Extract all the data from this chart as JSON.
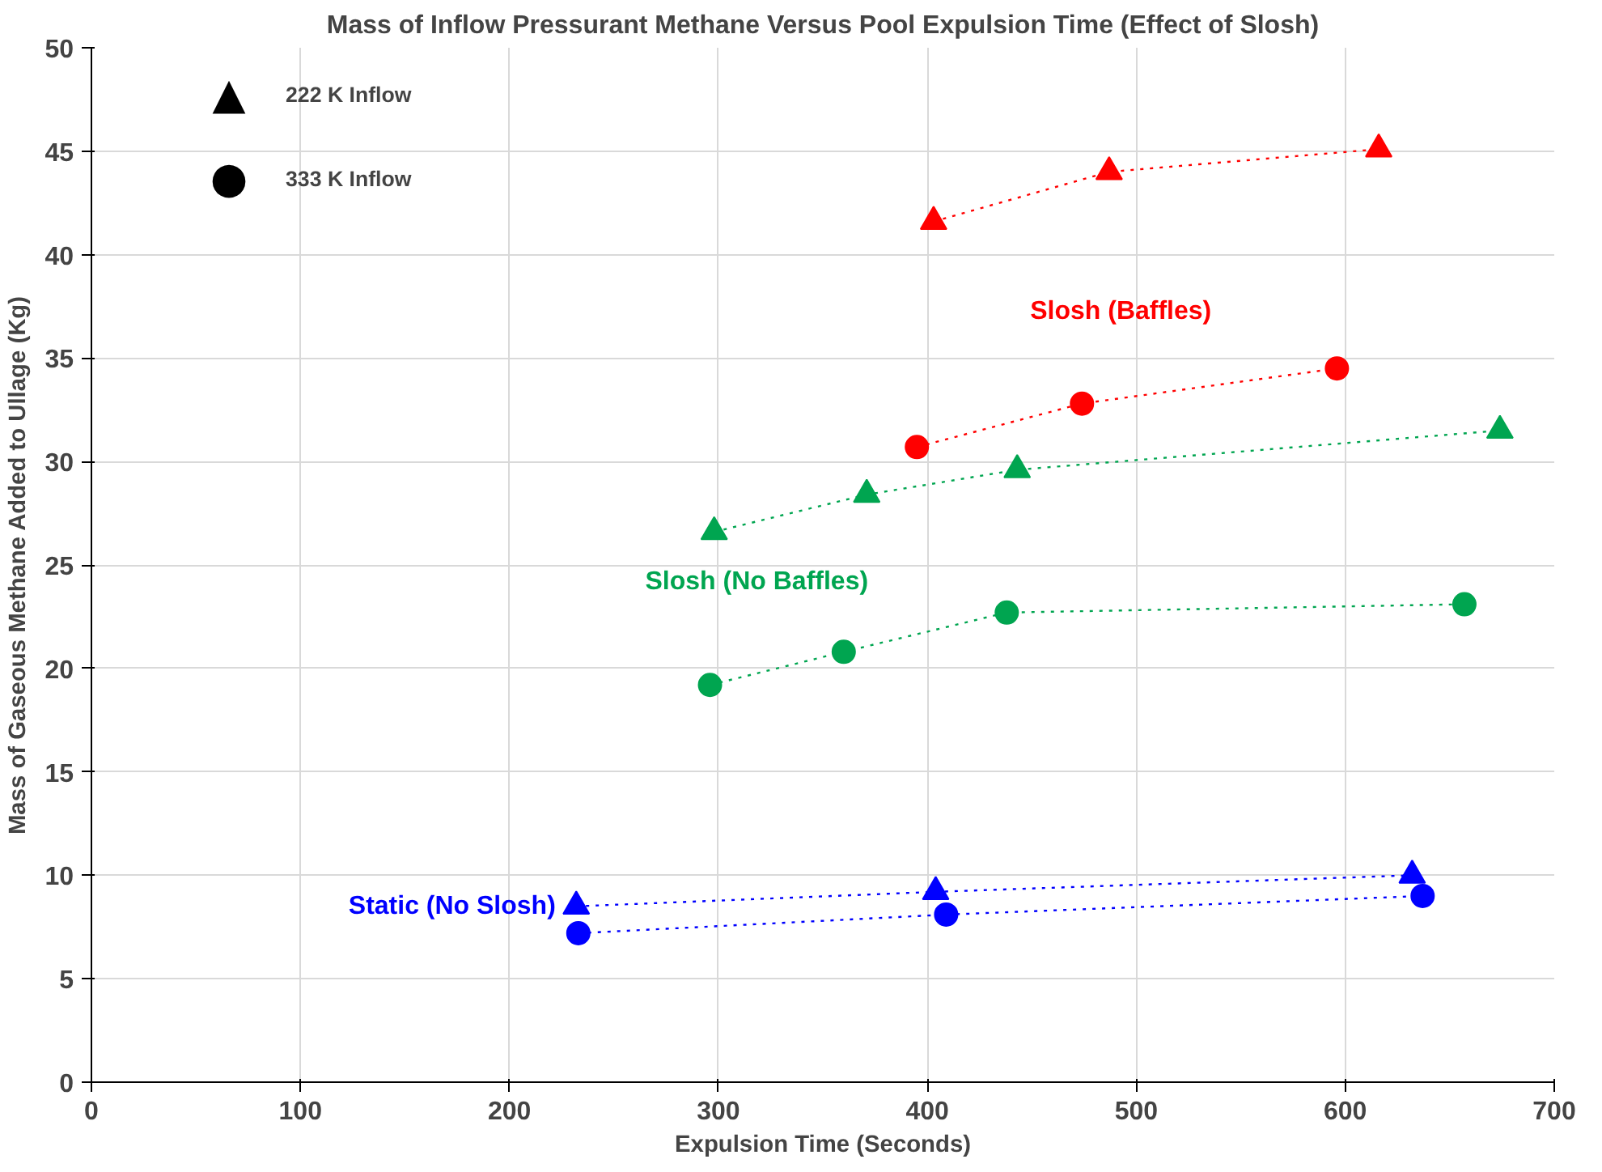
{
  "chart_data": {
    "type": "line",
    "title": "Mass of Inflow Pressurant Methane Versus Pool Expulsion Time (Effect of Slosh)",
    "xlabel": "Expulsion Time (Seconds)",
    "ylabel": "Mass of Gaseous Methane Added to Ullage (Kg)",
    "xlim": [
      0,
      700
    ],
    "xticks": [
      0,
      100,
      200,
      300,
      400,
      500,
      600,
      700
    ],
    "ylim": [
      0,
      50
    ],
    "yticks": [
      0,
      5,
      10,
      15,
      20,
      25,
      30,
      35,
      40,
      45,
      50
    ],
    "grid": true,
    "line_style": "dotted",
    "series": [
      {
        "color": "#ff0000",
        "marker": "triangle",
        "x": [
          403,
          487,
          616
        ],
        "values": [
          41.6,
          44.0,
          45.1
        ]
      },
      {
        "name": "Slosh (Baffles)",
        "color": "#ff0000",
        "marker": "circle",
        "x": [
          395,
          474,
          596
        ],
        "values": [
          30.7,
          32.8,
          34.5
        ]
      },
      {
        "color": "#00a550",
        "marker": "triangle",
        "x": [
          298,
          371,
          443,
          674
        ],
        "values": [
          26.6,
          28.4,
          29.6,
          31.5
        ]
      },
      {
        "name": "Slosh (No Baffles)",
        "color": "#00a550",
        "marker": "circle",
        "x": [
          296,
          360,
          438,
          657
        ],
        "values": [
          19.2,
          20.8,
          22.7,
          23.1
        ]
      },
      {
        "color": "#0000ff",
        "marker": "triangle",
        "x": [
          232,
          404,
          632
        ],
        "values": [
          8.5,
          9.2,
          10.0
        ]
      },
      {
        "name": "Static (No Slosh)",
        "color": "#0000ff",
        "marker": "circle",
        "x": [
          233,
          409,
          637
        ],
        "values": [
          7.2,
          8.1,
          9.0
        ]
      }
    ],
    "annotations": [
      "▲",
      "222 K Inflow",
      "●",
      "333 K Inflow"
    ]
  }
}
